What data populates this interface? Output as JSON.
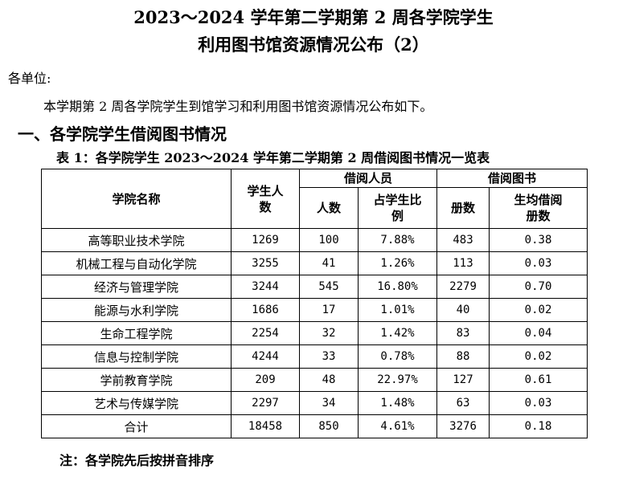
{
  "doc": {
    "title_line1": "2023～2024 学年第二学期第 2 周各学院学生",
    "title_line2": "利用图书馆资源情况公布（2）",
    "addressee": "各单位:",
    "intro": "本学期第 2 周各学院学生到馆学习和利用图书馆资源情况公布如下。",
    "section_heading": "一、各学院学生借阅图书情况",
    "table_caption": "表 1：各学院学生 2023～2024 学年第二学期第 2 周借阅图书情况一览表",
    "note": "注：各学院先后按拼音排序"
  },
  "table": {
    "headers": {
      "college": "学院名称",
      "students": "学生人数",
      "borrowers_group": "借阅人员",
      "borrowers_count": "人数",
      "borrowers_ratio": "占学生比例",
      "books_group": "借阅图书",
      "books_volumes": "册数",
      "books_per_capita": "生均借阅册数"
    },
    "rows": [
      {
        "college": "高等职业技术学院",
        "students": "1269",
        "borrowers": "100",
        "ratio": "7.88%",
        "volumes": "483",
        "per_capita": "0.38"
      },
      {
        "college": "机械工程与自动化学院",
        "students": "3255",
        "borrowers": "41",
        "ratio": "1.26%",
        "volumes": "113",
        "per_capita": "0.03"
      },
      {
        "college": "经济与管理学院",
        "students": "3244",
        "borrowers": "545",
        "ratio": "16.80%",
        "volumes": "2279",
        "per_capita": "0.70"
      },
      {
        "college": "能源与水利学院",
        "students": "1686",
        "borrowers": "17",
        "ratio": "1.01%",
        "volumes": "40",
        "per_capita": "0.02"
      },
      {
        "college": "生命工程学院",
        "students": "2254",
        "borrowers": "32",
        "ratio": "1.42%",
        "volumes": "83",
        "per_capita": "0.04"
      },
      {
        "college": "信息与控制学院",
        "students": "4244",
        "borrowers": "33",
        "ratio": "0.78%",
        "volumes": "88",
        "per_capita": "0.02"
      },
      {
        "college": "学前教育学院",
        "students": "209",
        "borrowers": "48",
        "ratio": "22.97%",
        "volumes": "127",
        "per_capita": "0.61"
      },
      {
        "college": "艺术与传媒学院",
        "students": "2297",
        "borrowers": "34",
        "ratio": "1.48%",
        "volumes": "63",
        "per_capita": "0.03"
      },
      {
        "college": "合计",
        "students": "18458",
        "borrowers": "850",
        "ratio": "4.61%",
        "volumes": "3276",
        "per_capita": "0.18"
      }
    ]
  }
}
